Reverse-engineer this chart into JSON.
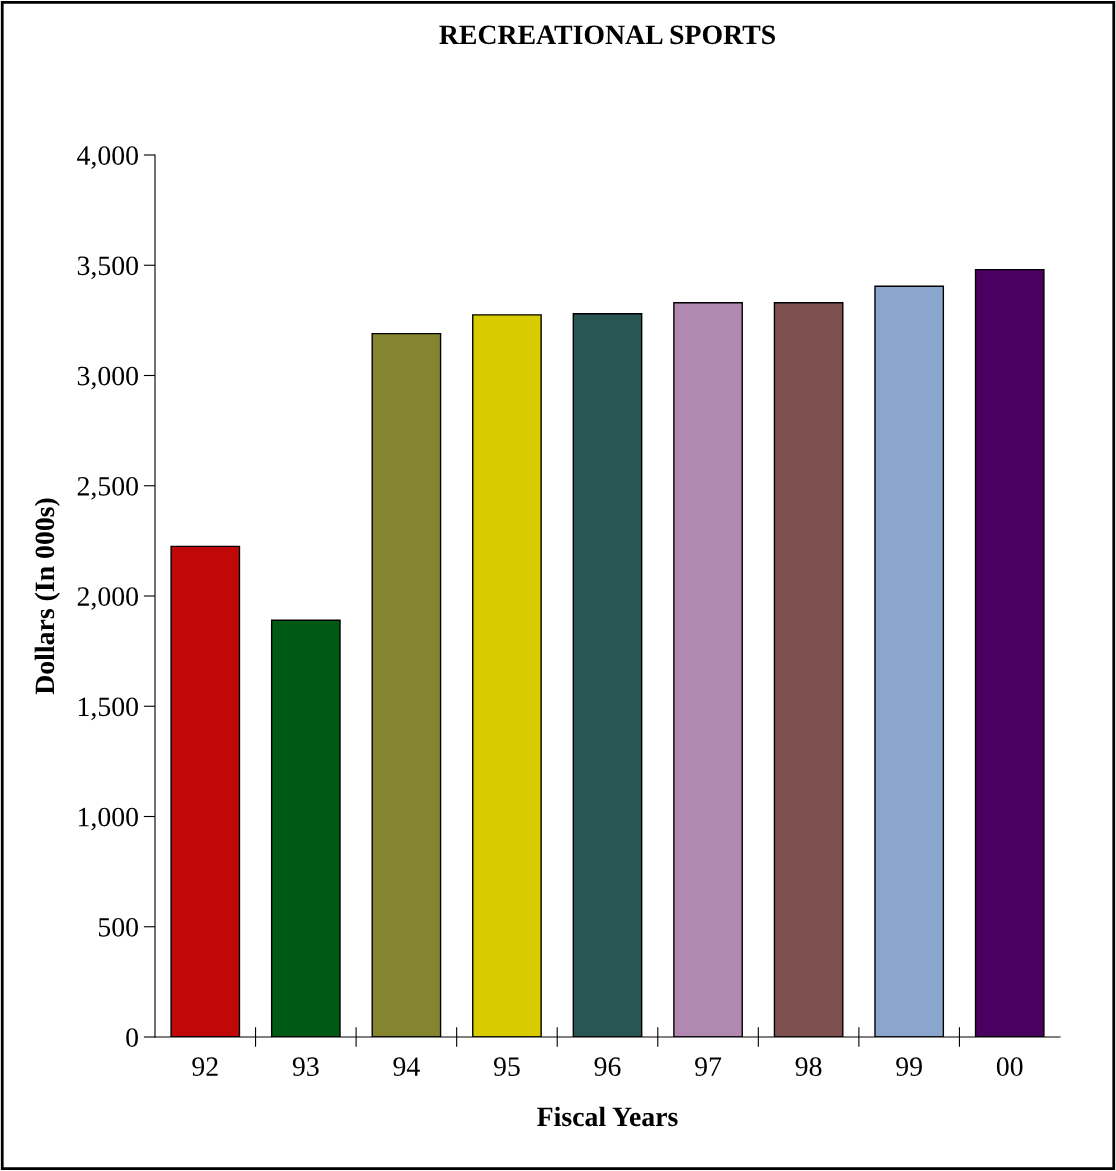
{
  "chart_data": {
    "type": "bar",
    "title": "RECREATIONAL SPORTS",
    "xlabel": "Fiscal Years",
    "ylabel": "Dollars (In 000s)",
    "categories": [
      "92",
      "93",
      "94",
      "95",
      "96",
      "97",
      "98",
      "99",
      "00"
    ],
    "values": [
      2225,
      1890,
      3190,
      3275,
      3280,
      3330,
      3330,
      3405,
      3480
    ],
    "colors": [
      "#c00808",
      "#005a14",
      "#858530",
      "#d8cc00",
      "#2a5555",
      "#b088b0",
      "#7e5050",
      "#8aa6cc",
      "#4a0060"
    ],
    "ylim": [
      0,
      4000
    ],
    "yticks": [
      {
        "value": 0,
        "label": "0"
      },
      {
        "value": 500,
        "label": "500"
      },
      {
        "value": 1000,
        "label": "1,000"
      },
      {
        "value": 1500,
        "label": "1,500"
      },
      {
        "value": 2000,
        "label": "2,000"
      },
      {
        "value": 2500,
        "label": "2,500"
      },
      {
        "value": 3000,
        "label": "3,000"
      },
      {
        "value": 3500,
        "label": "3,500"
      },
      {
        "value": 4000,
        "label": "4,000"
      }
    ],
    "grid": false,
    "legend": false
  }
}
